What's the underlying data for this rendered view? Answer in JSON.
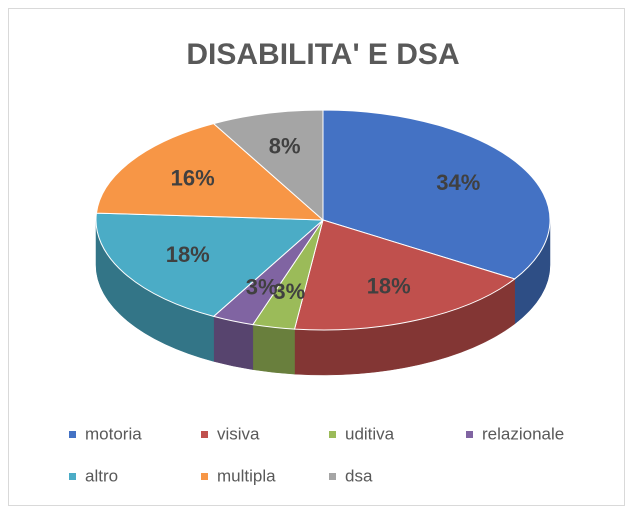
{
  "chart_data": {
    "type": "pie",
    "title": "DISABILITA' E DSA",
    "categories": [
      "motoria",
      "visiva",
      "uditiva",
      "relazionale",
      "altro",
      "multipla",
      "dsa"
    ],
    "values": [
      34,
      18,
      3,
      3,
      18,
      16,
      8
    ],
    "value_labels": [
      "34%",
      "18%",
      "3%",
      "3%",
      "18%",
      "16%",
      "8%"
    ],
    "colors": [
      "#4472c4",
      "#c0504d",
      "#9bbb59",
      "#8064a2",
      "#4bacc6",
      "#f79646",
      "#a5a5a5"
    ],
    "legend": "bottom"
  }
}
